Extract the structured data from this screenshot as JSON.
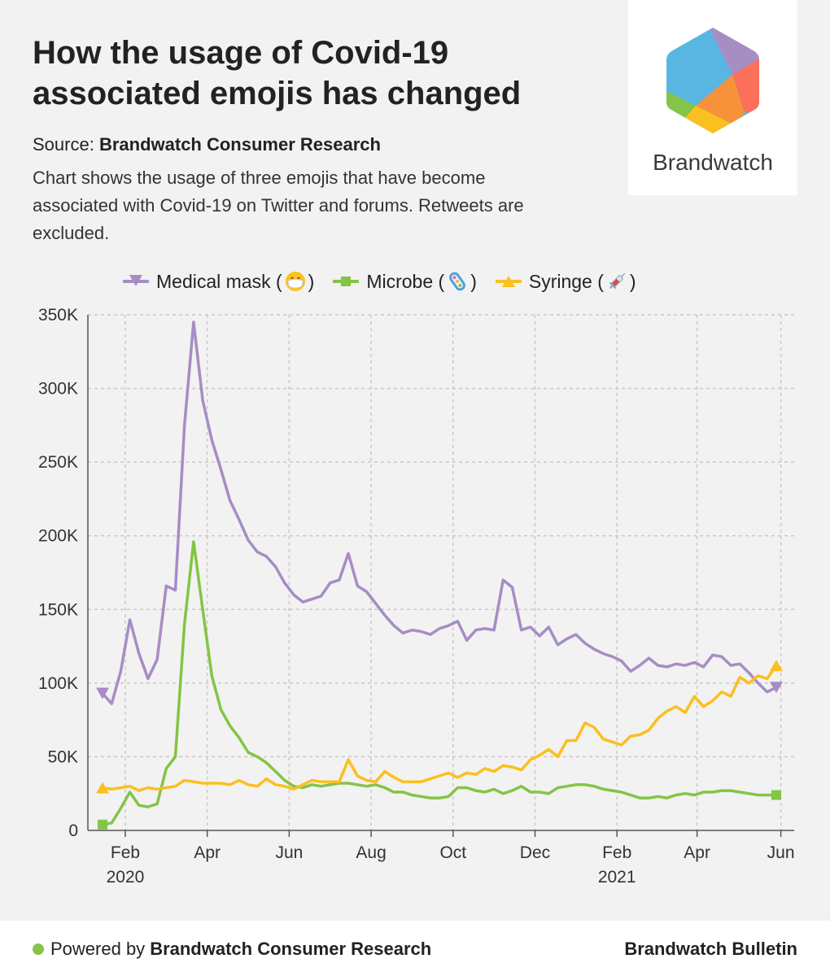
{
  "header": {
    "title": "How the usage of Covid-19 associated emojis has changed",
    "source_label": "Source:",
    "source_name": "Brandwatch Consumer Research",
    "description": "Chart shows the usage of three emojis that have become associated with Covid-19 on Twitter and forums. Retweets are excluded."
  },
  "logo": {
    "wordmark": "Brandwatch",
    "icon": "brandwatch-hexagon-logo"
  },
  "colors": {
    "medical_mask": "#a68dc4",
    "microbe": "#84c446",
    "syringe": "#fbbf1f",
    "grid": "#c9c9c9",
    "axis": "#555555"
  },
  "legend": [
    {
      "label": "Medical mask (",
      "emoji": "medical-mask-emoji",
      "close": ")",
      "marker": "triangle-down"
    },
    {
      "label": "Microbe (",
      "emoji": "microbe-emoji",
      "close": ")",
      "marker": "square"
    },
    {
      "label": "Syringe (",
      "emoji": "syringe-emoji",
      "close": ")",
      "marker": "triangle-up"
    }
  ],
  "chart_data": {
    "type": "line",
    "title": "How the usage of Covid-19 associated emojis has changed",
    "xlabel": "",
    "ylabel": "",
    "ylim": [
      0,
      350000
    ],
    "grid": true,
    "legend_position": "top",
    "y_ticks": [
      {
        "value": 0,
        "label": "0"
      },
      {
        "value": 50000,
        "label": "50K"
      },
      {
        "value": 100000,
        "label": "100K"
      },
      {
        "value": 150000,
        "label": "150K"
      },
      {
        "value": 200000,
        "label": "200K"
      },
      {
        "value": 250000,
        "label": "250K"
      },
      {
        "value": 300000,
        "label": "300K"
      },
      {
        "value": 350000,
        "label": "350K"
      }
    ],
    "x_range": [
      0,
      74
    ],
    "x_unit": "weeks since mid-January 2020",
    "x_ticks": [
      {
        "value": 2.5,
        "label": "Feb",
        "year": "2020"
      },
      {
        "value": 11.5,
        "label": "Apr",
        "year": ""
      },
      {
        "value": 20.5,
        "label": "Jun",
        "year": ""
      },
      {
        "value": 29.5,
        "label": "Aug",
        "year": ""
      },
      {
        "value": 38.5,
        "label": "Oct",
        "year": ""
      },
      {
        "value": 47.5,
        "label": "Dec",
        "year": ""
      },
      {
        "value": 56.5,
        "label": "Feb",
        "year": "2021"
      },
      {
        "value": 65.3,
        "label": "Apr",
        "year": ""
      },
      {
        "value": 74.5,
        "label": "Jun",
        "year": ""
      }
    ],
    "series": [
      {
        "name": "Medical mask (😷)",
        "marker": "triangle-down",
        "x": [
          0,
          1,
          2,
          3,
          4,
          5,
          6,
          7,
          8,
          9,
          10,
          11,
          12,
          13,
          14,
          15,
          16,
          17,
          18,
          19,
          20,
          21,
          22,
          23,
          24,
          25,
          26,
          27,
          28,
          29,
          30,
          31,
          32,
          33,
          34,
          35,
          36,
          37,
          38,
          39,
          40,
          41,
          42,
          43,
          44,
          45,
          46,
          47,
          48,
          49,
          50,
          51,
          52,
          53,
          54,
          55,
          56,
          57,
          58,
          59,
          60,
          61,
          62,
          63,
          64,
          65,
          66,
          67,
          68,
          69,
          70,
          71,
          72,
          73,
          74,
          75,
          76
        ],
        "values": [
          93000,
          86000,
          108000,
          143000,
          120000,
          103000,
          116000,
          166000,
          163000,
          275000,
          345000,
          292000,
          265000,
          245000,
          224000,
          211000,
          197000,
          189000,
          186000,
          179000,
          168000,
          160000,
          155000,
          157000,
          159000,
          168000,
          170000,
          188000,
          166000,
          162000,
          154000,
          146000,
          139000,
          134000,
          136000,
          135000,
          133000,
          137000,
          139000,
          142000,
          129000,
          136000,
          137000,
          136000,
          170000,
          165000,
          136000,
          138000,
          132000,
          138000,
          126000,
          130000,
          133000,
          127000,
          123000,
          120000,
          118000,
          115000,
          108000,
          112000,
          117000,
          112000,
          111000,
          113000,
          112000,
          114000,
          111000,
          119000,
          118000,
          112000,
          113000,
          107000,
          100000,
          94000,
          97000,
          null,
          null
        ]
      },
      {
        "name": "Microbe (🦠)",
        "marker": "square",
        "x": [
          0,
          1,
          2,
          3,
          4,
          5,
          6,
          7,
          8,
          9,
          10,
          11,
          12,
          13,
          14,
          15,
          16,
          17,
          18,
          19,
          20,
          21,
          22,
          23,
          24,
          25,
          26,
          27,
          28,
          29,
          30,
          31,
          32,
          33,
          34,
          35,
          36,
          37,
          38,
          39,
          40,
          41,
          42,
          43,
          44,
          45,
          46,
          47,
          48,
          49,
          50,
          51,
          52,
          53,
          54,
          55,
          56,
          57,
          58,
          59,
          60,
          61,
          62,
          63,
          64,
          65,
          66,
          67,
          68,
          69,
          70,
          71,
          72,
          73,
          74,
          75,
          76
        ],
        "values": [
          4000,
          5000,
          15000,
          26000,
          17000,
          16000,
          18000,
          42000,
          50000,
          140000,
          196000,
          150000,
          105000,
          82000,
          71000,
          63000,
          53000,
          50000,
          46000,
          40000,
          34000,
          30000,
          29000,
          31000,
          30000,
          31000,
          32000,
          32000,
          31000,
          30000,
          31000,
          29000,
          26000,
          26000,
          24000,
          23000,
          22000,
          22000,
          23000,
          29000,
          29000,
          27000,
          26000,
          28000,
          25000,
          27000,
          30000,
          26000,
          26000,
          25000,
          29000,
          30000,
          31000,
          31000,
          30000,
          28000,
          27000,
          26000,
          24000,
          22000,
          22000,
          23000,
          22000,
          24000,
          25000,
          24000,
          26000,
          26000,
          27000,
          27000,
          26000,
          25000,
          24000,
          24000,
          24000,
          null,
          null
        ]
      },
      {
        "name": "Syringe (💉)",
        "marker": "triangle-up",
        "x": [
          0,
          1,
          2,
          3,
          4,
          5,
          6,
          7,
          8,
          9,
          10,
          11,
          12,
          13,
          14,
          15,
          16,
          17,
          18,
          19,
          20,
          21,
          22,
          23,
          24,
          25,
          26,
          27,
          28,
          29,
          30,
          31,
          32,
          33,
          34,
          35,
          36,
          37,
          38,
          39,
          40,
          41,
          42,
          43,
          44,
          45,
          46,
          47,
          48,
          49,
          50,
          51,
          52,
          53,
          54,
          55,
          56,
          57,
          58,
          59,
          60,
          61,
          62,
          63,
          64,
          65,
          66,
          67,
          68,
          69,
          70,
          71,
          72,
          73,
          74,
          75,
          76
        ],
        "values": [
          29000,
          28000,
          29000,
          30000,
          27000,
          29000,
          28000,
          29000,
          30000,
          34000,
          33000,
          32000,
          32000,
          32000,
          31000,
          34000,
          31000,
          30000,
          35000,
          31000,
          30000,
          28000,
          31000,
          34000,
          33000,
          33000,
          33000,
          48000,
          37000,
          34000,
          33000,
          40000,
          36000,
          33000,
          33000,
          33000,
          35000,
          37000,
          39000,
          36000,
          39000,
          38000,
          42000,
          40000,
          44000,
          43000,
          41000,
          48000,
          51000,
          55000,
          50000,
          61000,
          61000,
          73000,
          70000,
          62000,
          60000,
          58000,
          64000,
          65000,
          68000,
          76000,
          81000,
          84000,
          80000,
          91000,
          84000,
          88000,
          94000,
          91000,
          104000,
          100000,
          105000,
          103000,
          112000,
          null,
          null
        ]
      }
    ]
  },
  "footer": {
    "powered_label": "Powered by",
    "powered_name": "Brandwatch Consumer Research",
    "brand": "Brandwatch Bulletin"
  }
}
